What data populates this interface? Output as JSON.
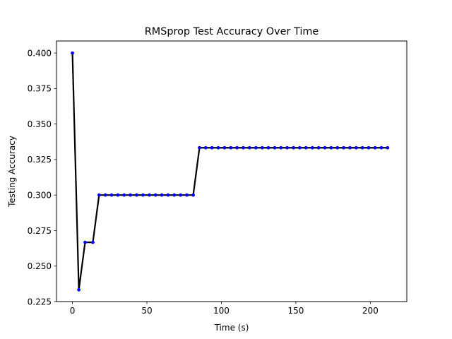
{
  "chart_data": {
    "type": "line",
    "title": "RMSprop Test Accuracy Over Time",
    "xlabel": "Time (s)",
    "ylabel": "Testing Accuracy",
    "xlim": [
      -10.7,
      224.5
    ],
    "ylim": [
      0.225,
      0.4085
    ],
    "xticks": [
      0,
      50,
      100,
      150,
      200
    ],
    "yticks": [
      0.225,
      0.25,
      0.275,
      0.3,
      0.325,
      0.35,
      0.375,
      0.4
    ],
    "ytick_labels": [
      "0.225",
      "0.250",
      "0.275",
      "0.300",
      "0.325",
      "0.350",
      "0.375",
      "0.400"
    ],
    "grid": false,
    "legend": "none",
    "line_color": "#000000",
    "marker_color": "#0000ff",
    "series": [
      {
        "x": [
          0,
          4.3,
          8.5,
          13.7,
          17.9,
          22.1,
          26.3,
          30.5,
          34.7,
          38.9,
          43.1,
          47.4,
          51.6,
          55.8,
          60.0,
          64.2,
          68.4,
          72.6,
          76.8,
          81.1,
          85.3,
          89.5,
          93.7,
          97.9,
          102.1,
          106.3,
          110.5,
          114.7,
          118.9,
          123.2,
          127.4,
          131.6,
          135.8,
          140.0,
          144.2,
          148.4,
          152.6,
          156.8,
          161.1,
          165.3,
          169.5,
          173.7,
          177.9,
          182.1,
          186.3,
          190.5,
          194.7,
          198.9,
          203.2,
          207.4,
          211.6
        ],
        "y": [
          0.4,
          0.2333,
          0.2667,
          0.2667,
          0.3,
          0.3,
          0.3,
          0.3,
          0.3,
          0.3,
          0.3,
          0.3,
          0.3,
          0.3,
          0.3,
          0.3,
          0.3,
          0.3,
          0.3,
          0.3,
          0.3333,
          0.3333,
          0.3333,
          0.3333,
          0.3333,
          0.3333,
          0.3333,
          0.3333,
          0.3333,
          0.3333,
          0.3333,
          0.3333,
          0.3333,
          0.3333,
          0.3333,
          0.3333,
          0.3333,
          0.3333,
          0.3333,
          0.3333,
          0.3333,
          0.3333,
          0.3333,
          0.3333,
          0.3333,
          0.3333,
          0.3333,
          0.3333,
          0.3333,
          0.3333,
          0.3333
        ]
      }
    ]
  }
}
